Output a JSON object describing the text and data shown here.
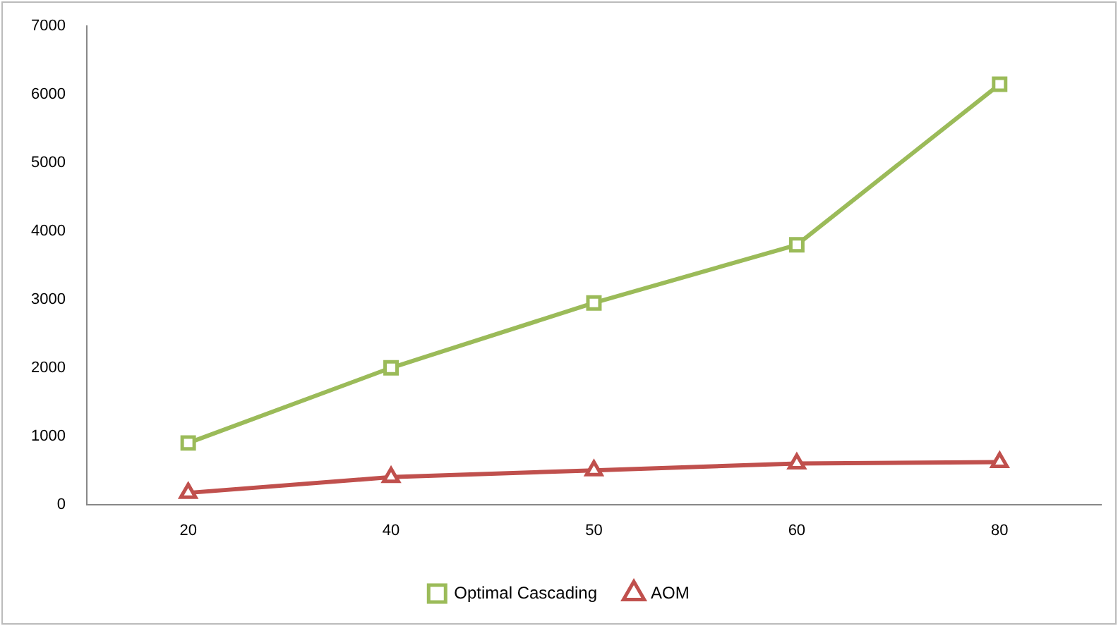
{
  "chart_data": {
    "type": "line",
    "categories": [
      "20",
      "40",
      "50",
      "60",
      "80"
    ],
    "series": [
      {
        "name": "Optimal Cascading",
        "color": "#9bbb59",
        "marker": "square",
        "values": [
          900,
          2000,
          2950,
          3800,
          6150
        ]
      },
      {
        "name": "AOM",
        "color": "#c0504d",
        "marker": "triangle",
        "values": [
          170,
          400,
          500,
          600,
          620
        ]
      }
    ],
    "ylim": [
      0,
      7000
    ],
    "yticks": [
      0,
      1000,
      2000,
      3000,
      4000,
      5000,
      6000,
      7000
    ],
    "grid": false,
    "legend": "bottom",
    "line_style": "solid"
  }
}
